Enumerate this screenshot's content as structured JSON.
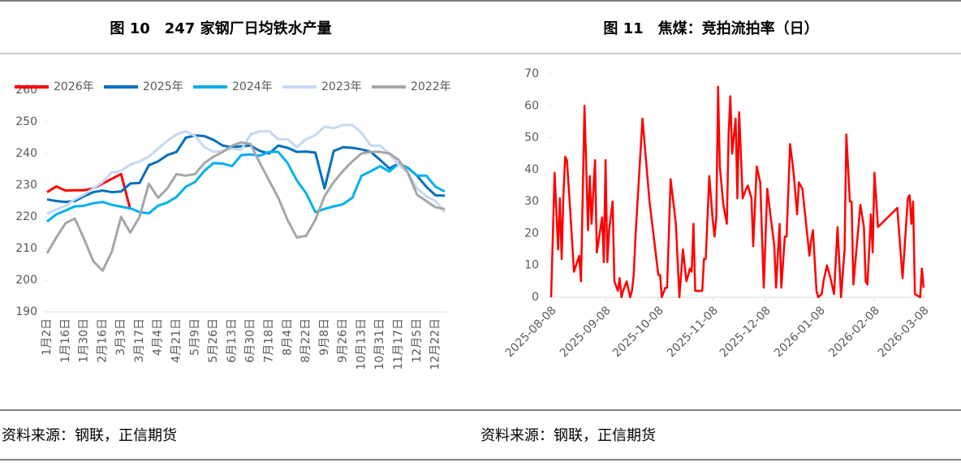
{
  "chart_data": [
    {
      "type": "line",
      "title": "图 10　247 家钢厂日均铁水产量",
      "source": "资料来源：钢联，正信期货",
      "legend": "top",
      "categories": [
        "1月2日",
        null,
        "1月16日",
        null,
        "1月30日",
        null,
        "2月16日",
        null,
        "3月3日",
        null,
        "3月17日",
        null,
        "4月4日",
        null,
        "4月21日",
        null,
        "5月9日",
        null,
        "5月26日",
        null,
        "6月13日",
        null,
        "6月30日",
        null,
        "7月18日",
        null,
        "8月4日",
        null,
        "8月22日",
        null,
        "9月8日",
        null,
        "9月26日",
        null,
        "10月13日",
        null,
        "10月31日",
        null,
        "11月17日",
        null,
        "12月5日",
        null,
        "12月22日",
        null
      ],
      "ylim": [
        190,
        260
      ],
      "yticks": [
        190,
        200,
        210,
        220,
        230,
        240,
        250,
        260
      ],
      "series": [
        {
          "name": "2026年",
          "color": "#ff0000",
          "values": [
            227.8,
            229.6,
            228.3,
            228.4,
            228.4,
            229,
            230.5,
            232,
            233.5,
            222.3,
            null,
            null,
            null,
            null,
            null,
            null,
            null,
            null,
            null,
            null,
            null,
            null,
            null,
            null,
            null,
            null,
            null,
            null,
            null,
            null,
            null,
            null,
            null,
            null,
            null,
            null,
            null,
            null,
            null,
            null,
            null,
            null,
            null,
            null
          ]
        },
        {
          "name": "2025年",
          "color": "#0070c0",
          "values": [
            225.5,
            225,
            224.7,
            225,
            226.5,
            227.8,
            228.3,
            227.8,
            228,
            230.5,
            230.7,
            236.3,
            237.5,
            239.5,
            240.5,
            245,
            245.7,
            245.5,
            244.3,
            242.5,
            242,
            242.3,
            242.5,
            240.8,
            240,
            242.5,
            241.8,
            240.5,
            240.6,
            240.3,
            229,
            240.8,
            242,
            241.8,
            241.3,
            240.5,
            238,
            235.3,
            236.8,
            235.5,
            233,
            229.5,
            226.8,
            226.7
          ]
        },
        {
          "name": "2024年",
          "color": "#00b0f0",
          "values": [
            218.5,
            220.8,
            222,
            223.3,
            223.5,
            224.3,
            224.7,
            223.8,
            223.2,
            222.7,
            221.5,
            221.1,
            223.5,
            224.5,
            226.3,
            229.5,
            231,
            234.5,
            237,
            236.8,
            236,
            239.5,
            239.7,
            239.3,
            240.5,
            240.5,
            237,
            231.5,
            227.5,
            221.5,
            222.5,
            223.3,
            224,
            226,
            233,
            234.4,
            236,
            234.3,
            236.8,
            235.5,
            233,
            233,
            229.5,
            228
          ]
        },
        {
          "name": "2023年",
          "color": "#c5d9f1",
          "values": [
            221,
            222.3,
            223.5,
            225.5,
            227,
            229,
            231,
            234,
            234.5,
            236.5,
            237.5,
            239,
            241.5,
            244,
            246,
            247,
            245.5,
            242,
            240.5,
            240.8,
            241.5,
            241.2,
            246,
            247,
            247,
            244.5,
            244.5,
            242,
            244.5,
            245.8,
            248.5,
            248,
            249,
            249,
            246.5,
            242.5,
            242.5,
            240,
            236.5,
            234,
            229,
            226.5,
            225,
            221.5
          ]
        },
        {
          "name": "2022年",
          "color": "#a6a6a6",
          "values": [
            208.5,
            213.5,
            218,
            219.5,
            213,
            206,
            203,
            209,
            220,
            215,
            220,
            230.5,
            226,
            229,
            233.5,
            233,
            233.5,
            237,
            239,
            240.5,
            242.5,
            243.5,
            243,
            237,
            231.5,
            226,
            219,
            213.5,
            214,
            219,
            226.5,
            231,
            234.5,
            237.5,
            240,
            240.5,
            240.5,
            240,
            238,
            234,
            227,
            225,
            223,
            222.5
          ]
        }
      ]
    },
    {
      "type": "line",
      "title": "图 11　焦煤：竞拍流拍率（日）",
      "source": "资料来源：钢联，正信期货",
      "x": [
        "2025-08-08",
        "2025-08-10",
        "2025-08-12",
        "2025-08-13",
        "2025-08-14",
        "2025-08-15",
        "2025-08-16",
        "2025-08-17",
        "2025-08-19",
        "2025-08-21",
        "2025-08-24",
        "2025-08-25",
        "2025-08-27",
        "2025-08-29",
        "2025-08-30",
        "2025-08-31",
        "2025-09-02",
        "2025-09-03",
        "2025-09-06",
        "2025-09-07",
        "2025-09-08",
        "2025-09-09",
        "2025-09-10",
        "2025-09-12",
        "2025-09-13",
        "2025-09-15",
        "2025-09-16",
        "2025-09-17",
        "2025-09-18",
        "2025-09-20",
        "2025-09-22",
        "2025-09-23",
        "2025-09-24",
        "2025-09-25",
        "2025-09-29",
        "2025-10-03",
        "2025-10-08",
        "2025-10-09",
        "2025-10-10",
        "2025-10-12",
        "2025-10-13",
        "2025-10-15",
        "2025-10-18",
        "2025-10-20",
        "2025-10-22",
        "2025-10-24",
        "2025-10-26",
        "2025-10-27",
        "2025-10-28",
        "2025-10-29",
        "2025-11-02",
        "2025-11-03",
        "2025-11-04",
        "2025-11-06",
        "2025-11-08",
        "2025-11-09",
        "2025-11-10",
        "2025-11-11",
        "2025-11-12",
        "2025-11-14",
        "2025-11-16",
        "2025-11-17",
        "2025-11-18",
        "2025-11-19",
        "2025-11-21",
        "2025-11-22",
        "2025-11-23",
        "2025-11-25",
        "2025-11-27",
        "2025-11-28",
        "2025-11-30",
        "2025-12-01",
        "2025-12-03",
        "2025-12-05",
        "2025-12-07",
        "2025-12-09",
        "2025-12-11",
        "2025-12-13",
        "2025-12-14",
        "2025-12-16",
        "2025-12-17",
        "2025-12-19",
        "2025-12-20",
        "2025-12-22",
        "2025-12-24",
        "2025-12-26",
        "2025-12-27",
        "2025-12-29",
        "2026-01-02",
        "2026-01-03",
        "2026-01-04",
        "2026-01-06",
        "2026-01-07",
        "2026-01-09",
        "2026-01-10",
        "2026-01-12",
        "2026-01-14",
        "2026-01-16",
        "2026-01-18",
        "2026-01-20",
        "2026-01-22",
        "2026-01-23",
        "2026-01-25",
        "2026-01-26",
        "2026-01-27",
        "2026-01-31",
        "2026-02-02",
        "2026-02-03",
        "2026-02-04",
        "2026-02-06",
        "2026-02-07",
        "2026-02-08",
        "2026-02-10",
        "2026-02-21",
        "2026-02-24",
        "2026-02-27",
        "2026-02-28",
        "2026-03-01",
        "2026-03-02",
        "2026-03-03",
        "2026-03-06",
        "2026-03-07",
        "2026-03-08"
      ],
      "xlim": [
        "2025-08-08",
        "2026-03-08"
      ],
      "xticks": [
        "2025-08-08",
        "2025-09-08",
        "2025-10-08",
        "2025-11-08",
        "2025-12-08",
        "2026-01-08",
        "2026-02-08",
        "2026-03-08"
      ],
      "ylim": [
        0,
        70
      ],
      "yticks": [
        0,
        10,
        20,
        30,
        40,
        50,
        60,
        70
      ],
      "series": [
        {
          "color": "#ff0000",
          "values": [
            0,
            39,
            15,
            31,
            12,
            32,
            44,
            43,
            26,
            8,
            13,
            5,
            60,
            21,
            38,
            23,
            43,
            14,
            25,
            11,
            43,
            11,
            21,
            30,
            5,
            2,
            6,
            0,
            2,
            5,
            0,
            2,
            7,
            19,
            56,
            30,
            7,
            7,
            0,
            3,
            3,
            37,
            23,
            0,
            15,
            5,
            9,
            8,
            23,
            2,
            2,
            12,
            12,
            38,
            24,
            19,
            25,
            66,
            41,
            29,
            23,
            51,
            63,
            45,
            56,
            31,
            58,
            31,
            34,
            35,
            31,
            16,
            41,
            36,
            3,
            34,
            25,
            16,
            3,
            23,
            3,
            19,
            19,
            48,
            39,
            26,
            36,
            34,
            13,
            18,
            21,
            2,
            0,
            1,
            5,
            10,
            6,
            1,
            22,
            0,
            15,
            51,
            30,
            30,
            4,
            29,
            22,
            5,
            4,
            26,
            14,
            39,
            22,
            28,
            6,
            31,
            32,
            23,
            30,
            1,
            0,
            9,
            3
          ]
        }
      ]
    }
  ]
}
